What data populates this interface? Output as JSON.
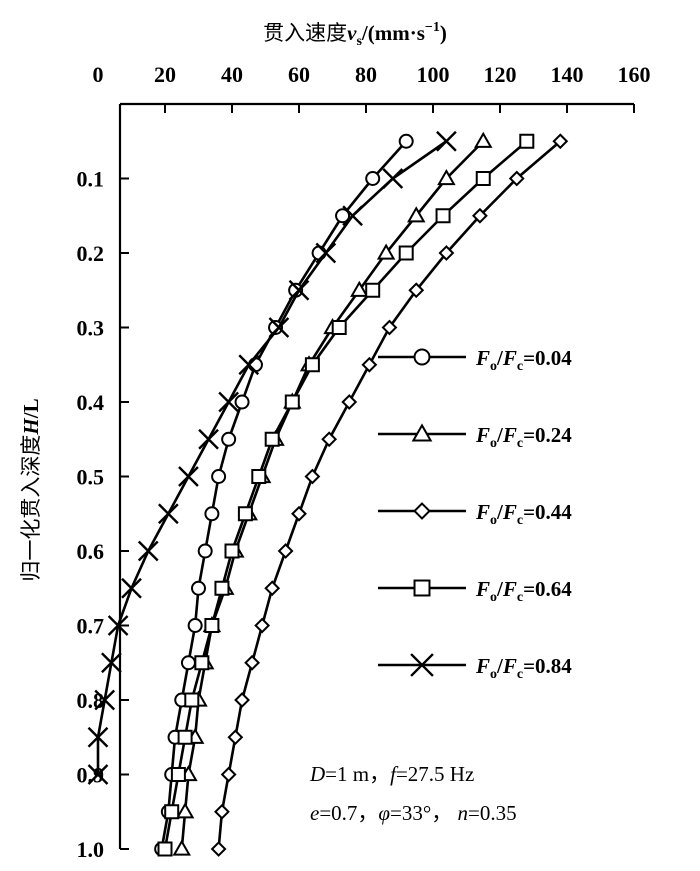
{
  "chart_data": {
    "type": "line",
    "title": "",
    "xlabel": "贯入速度v_s/(mm·s⁻¹)",
    "xlabel_prefix": "贯入速度",
    "xlabel_var": "v",
    "xlabel_sub": "s",
    "xlabel_unit": "/(mm·s",
    "xlabel_exp": "−1",
    "xlabel_close": ")",
    "ylabel": "归一化贯入深度H/L",
    "ylabel_prefix": "归一化贯入深度",
    "ylabel_var": "H",
    "ylabel_suffix": "/L",
    "xlim": [
      0,
      160
    ],
    "ylim": [
      1.0,
      0.0
    ],
    "x_axis_position": "top",
    "y_axis_inverted": true,
    "x_ticks": [
      0,
      20,
      40,
      60,
      80,
      100,
      120,
      140,
      160
    ],
    "y_ticks": [
      0.1,
      0.2,
      0.3,
      0.4,
      0.5,
      0.6,
      0.7,
      0.8,
      0.9,
      1.0
    ],
    "y_tick_labels": [
      "0.1",
      "0.2",
      "0.3",
      "0.4",
      "0.5",
      "0.6",
      "0.7",
      "0.8",
      "0.9",
      "1.0"
    ],
    "grid": false,
    "legend_position": "right-middle",
    "series": [
      {
        "name": "Fo/Fc=0.04",
        "ratio_value": "0.04",
        "marker": "circle",
        "x": [
          92,
          82,
          73,
          66,
          59,
          53,
          47,
          43,
          39,
          36,
          34,
          32,
          30,
          29,
          27,
          25,
          23,
          22,
          21,
          19
        ],
        "y": [
          0.05,
          0.1,
          0.15,
          0.2,
          0.25,
          0.3,
          0.35,
          0.4,
          0.45,
          0.5,
          0.55,
          0.6,
          0.65,
          0.7,
          0.75,
          0.8,
          0.85,
          0.9,
          0.95,
          1.0
        ]
      },
      {
        "name": "Fo/Fc=0.24",
        "ratio_value": "0.24",
        "marker": "triangle",
        "x": [
          115,
          104,
          95,
          86,
          78,
          70,
          63,
          58,
          53,
          49,
          45,
          41,
          38,
          34,
          32,
          30,
          29,
          27,
          26,
          25
        ],
        "y": [
          0.05,
          0.1,
          0.15,
          0.2,
          0.25,
          0.3,
          0.35,
          0.4,
          0.45,
          0.5,
          0.55,
          0.6,
          0.65,
          0.7,
          0.75,
          0.8,
          0.85,
          0.9,
          0.95,
          1.0
        ]
      },
      {
        "name": "Fo/Fc=0.44",
        "ratio_value": "0.44",
        "marker": "diamond",
        "x": [
          138,
          125,
          114,
          104,
          95,
          87,
          81,
          75,
          69,
          64,
          60,
          56,
          52,
          49,
          46,
          43,
          41,
          39,
          37,
          36
        ],
        "y": [
          0.05,
          0.1,
          0.15,
          0.2,
          0.25,
          0.3,
          0.35,
          0.4,
          0.45,
          0.5,
          0.55,
          0.6,
          0.65,
          0.7,
          0.75,
          0.8,
          0.85,
          0.9,
          0.95,
          1.0
        ]
      },
      {
        "name": "Fo/Fc=0.64",
        "ratio_value": "0.64",
        "marker": "square",
        "x": [
          128,
          115,
          103,
          92,
          82,
          72,
          64,
          58,
          52,
          48,
          44,
          40,
          37,
          34,
          31,
          28,
          26,
          24,
          22,
          20
        ],
        "y": [
          0.05,
          0.1,
          0.15,
          0.2,
          0.25,
          0.3,
          0.35,
          0.4,
          0.45,
          0.5,
          0.55,
          0.6,
          0.65,
          0.7,
          0.75,
          0.8,
          0.85,
          0.9,
          0.95,
          1.0
        ]
      },
      {
        "name": "Fo/Fc=0.84",
        "ratio_value": "0.84",
        "marker": "x",
        "x": [
          104,
          88,
          76,
          68,
          60,
          54,
          45,
          39,
          33,
          27,
          21,
          15,
          10,
          6,
          4,
          2,
          0,
          0
        ],
        "y": [
          0.05,
          0.1,
          0.15,
          0.2,
          0.25,
          0.3,
          0.35,
          0.4,
          0.45,
          0.5,
          0.55,
          0.6,
          0.65,
          0.7,
          0.75,
          0.8,
          0.85,
          0.9
        ]
      }
    ],
    "annotations": [
      "D=1 m，f=27.5 Hz",
      "e=0.7，φ=33°， n=0.35"
    ],
    "annotation_parts": {
      "line1_D": "D",
      "line1_D_val": "=1 m，",
      "line1_f": "f",
      "line1_f_val": "=27.5 Hz",
      "line2_e": "e",
      "line2_e_val": "=0.7，",
      "line2_phi": "φ",
      "line2_phi_val": "=33°， ",
      "line2_n": "n",
      "line2_n_val": "=0.35"
    },
    "legend_parts": {
      "F": "F",
      "o": "o",
      "slash": "/",
      "c": "c"
    }
  }
}
